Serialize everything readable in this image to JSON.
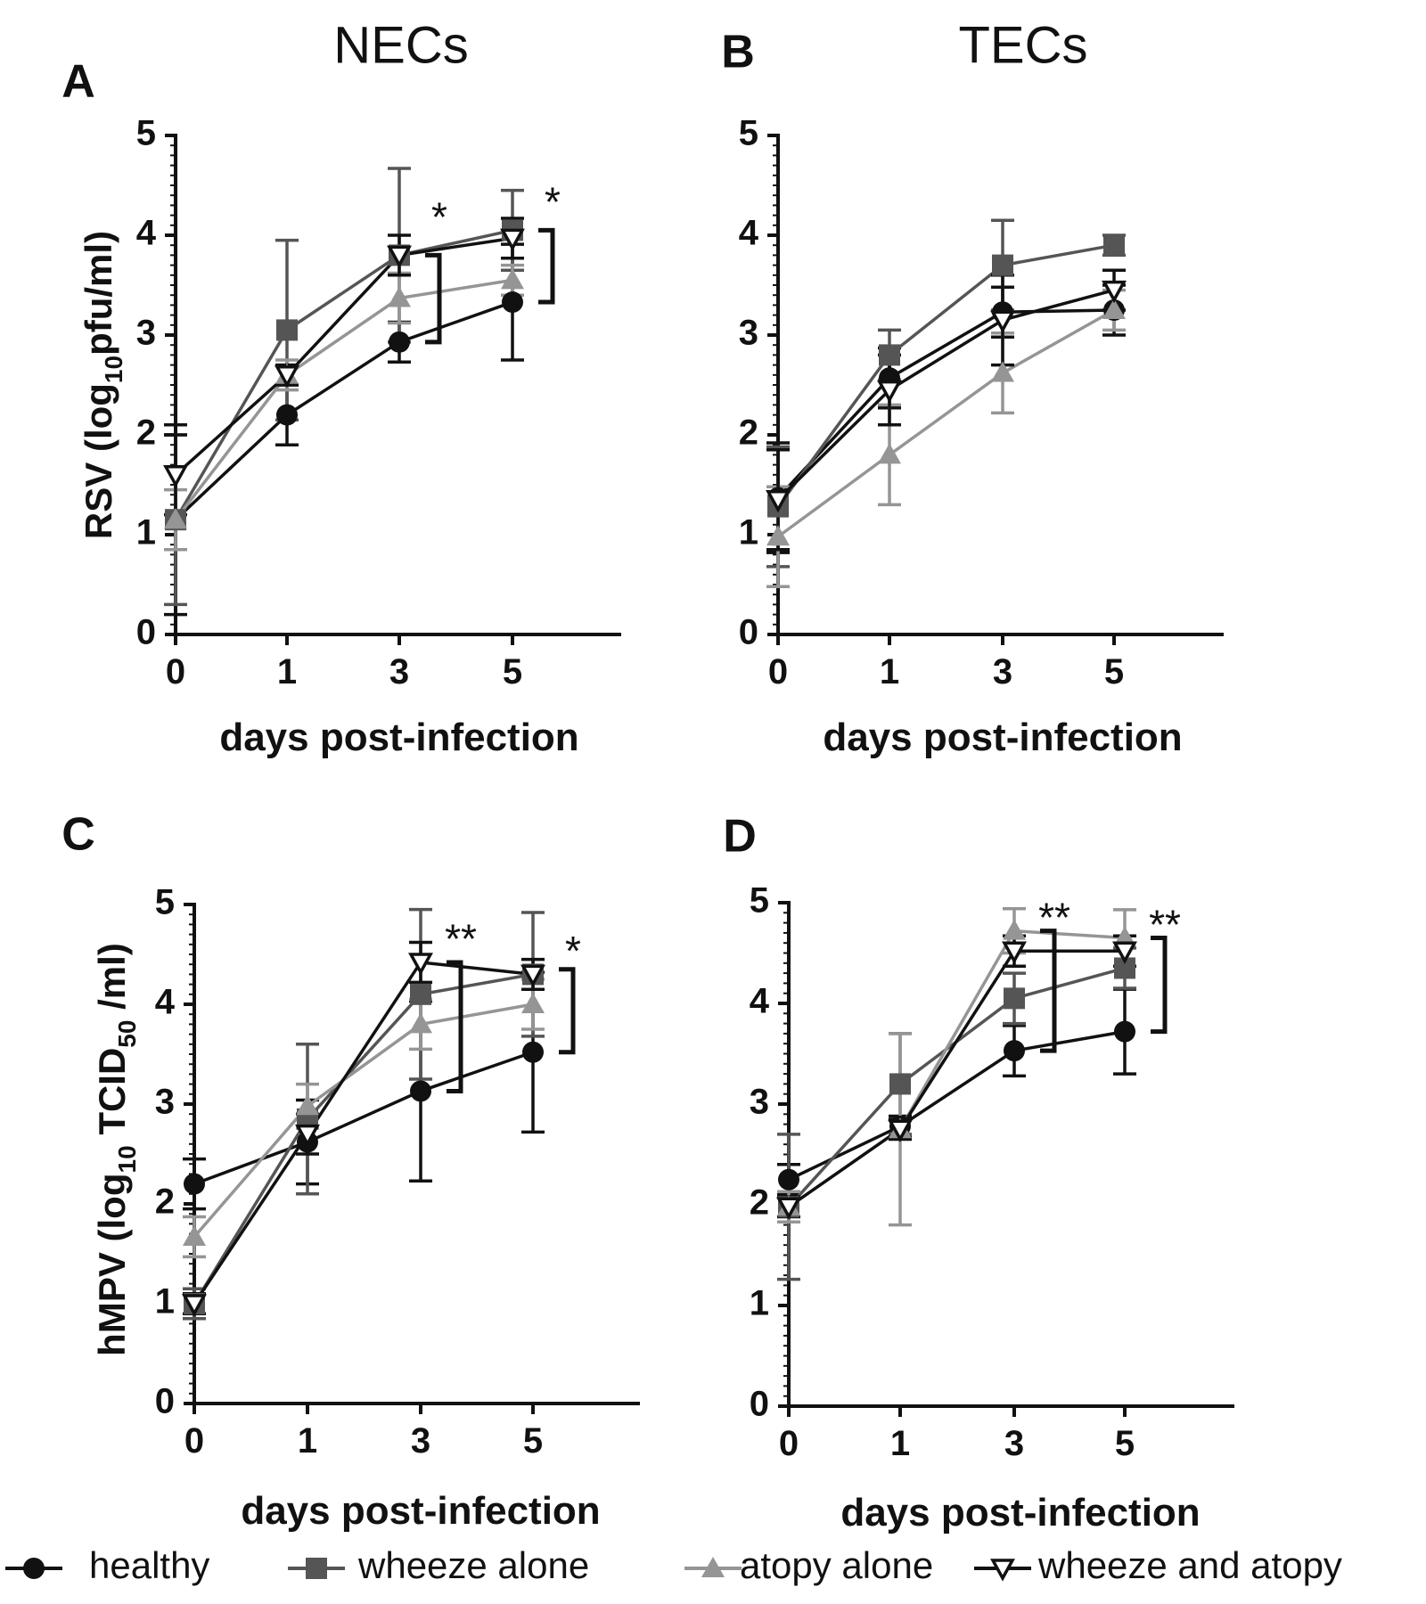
{
  "figure": {
    "legend": [
      {
        "name": "healthy",
        "marker": "circle",
        "color": "#111111"
      },
      {
        "name": "wheeze alone",
        "marker": "square",
        "color": "#555555"
      },
      {
        "name": "atopy alone",
        "marker": "triangle-up",
        "color": "#959595"
      },
      {
        "name": "wheeze and atopy",
        "marker": "triangle-down-open",
        "color": "#111111"
      }
    ]
  },
  "chart_data": [
    {
      "type": "line",
      "panel_letter": "A",
      "column_title": "NECs",
      "ylabel_pre": "RSV (log",
      "ylabel_sub": "10",
      "ylabel_post": "pfu/ml)",
      "xlabel": "days post-infection",
      "categories": [
        "0",
        "1",
        "3",
        "5"
      ],
      "ylim": [
        0,
        5
      ],
      "yticks": [
        "0",
        "1",
        "2",
        "3",
        "4",
        "5"
      ],
      "series": [
        {
          "name": "healthy",
          "values": [
            1.15,
            2.2,
            2.93,
            3.33
          ],
          "err": [
            0.95,
            0.3,
            0.2,
            0.58
          ]
        },
        {
          "name": "wheeze alone",
          "values": [
            1.15,
            3.05,
            3.8,
            4.05
          ],
          "err": [
            0.85,
            0.9,
            0.87,
            0.4
          ]
        },
        {
          "name": "atopy alone",
          "values": [
            1.15,
            2.6,
            3.37,
            3.55
          ],
          "err": [
            0.3,
            0.15,
            0.25,
            0.15
          ]
        },
        {
          "name": "wheeze and atopy",
          "values": [
            1.6,
            2.6,
            3.8,
            3.97
          ],
          "err": [
            0.4,
            0.1,
            0.2,
            0.2
          ]
        }
      ],
      "annotations": [
        {
          "text": "*",
          "x_cat": 3,
          "y": 4.15,
          "bracket": [
            2.93,
            3.8
          ]
        },
        {
          "text": "*",
          "x_cat": 5,
          "y": 4.3,
          "bracket": [
            3.33,
            4.05
          ]
        }
      ]
    },
    {
      "type": "line",
      "panel_letter": "B",
      "column_title": "TECs",
      "xlabel": "days post-infection",
      "categories": [
        "0",
        "1",
        "3",
        "5"
      ],
      "ylim": [
        0,
        5
      ],
      "yticks": [
        "0",
        "1",
        "2",
        "3",
        "4",
        "5"
      ],
      "series": [
        {
          "name": "healthy",
          "values": [
            1.37,
            2.57,
            3.23,
            3.25
          ],
          "err": [
            0.55,
            0.3,
            0.25,
            0.25
          ]
        },
        {
          "name": "wheeze alone",
          "values": [
            1.28,
            2.8,
            3.7,
            3.9
          ],
          "err": [
            0.6,
            0.25,
            0.45,
            0.1
          ]
        },
        {
          "name": "atopy alone",
          "values": [
            0.98,
            1.8,
            2.62,
            3.25
          ],
          "err": [
            0.5,
            0.5,
            0.4,
            0.2
          ]
        },
        {
          "name": "wheeze and atopy",
          "values": [
            1.35,
            2.45,
            3.15,
            3.45
          ],
          "err": [
            0.5,
            0.35,
            0.45,
            0.2
          ]
        }
      ]
    },
    {
      "type": "line",
      "panel_letter": "C",
      "ylabel_pre": "hMPV (log",
      "ylabel_sub": "10",
      "ylabel_mid": " TCID",
      "ylabel_sub2": "50",
      "ylabel_post": " /ml)",
      "xlabel": "days post-infection",
      "categories": [
        "0",
        "1",
        "3",
        "5"
      ],
      "ylim": [
        0,
        5
      ],
      "yticks": [
        "0",
        "1",
        "2",
        "3",
        "4",
        "5"
      ],
      "series": [
        {
          "name": "healthy",
          "values": [
            2.2,
            2.62,
            3.13,
            3.52
          ],
          "err": [
            0.25,
            0.42,
            0.9,
            0.8
          ]
        },
        {
          "name": "wheeze alone",
          "values": [
            1.0,
            2.85,
            4.1,
            4.3
          ],
          "err": [
            0.15,
            0.75,
            0.85,
            0.62
          ]
        },
        {
          "name": "atopy alone",
          "values": [
            1.67,
            2.98,
            3.8,
            4.0
          ],
          "err": [
            0.2,
            0.22,
            0.25,
            0.25
          ]
        },
        {
          "name": "wheeze and atopy",
          "values": [
            1.0,
            2.7,
            4.42,
            4.3
          ],
          "err": [
            0.1,
            0.2,
            0.2,
            0.15
          ]
        }
      ],
      "annotations": [
        {
          "text": "**",
          "x_cat": 3,
          "y": 4.62,
          "bracket": [
            3.13,
            4.42
          ]
        },
        {
          "text": "*",
          "x_cat": 5,
          "y": 4.5,
          "bracket": [
            3.52,
            4.35
          ]
        }
      ]
    },
    {
      "type": "line",
      "panel_letter": "D",
      "xlabel": "days post-infection",
      "categories": [
        "0",
        "1",
        "3",
        "5"
      ],
      "ylim": [
        0,
        5
      ],
      "yticks": [
        "0",
        "1",
        "2",
        "3",
        "4",
        "5"
      ],
      "series": [
        {
          "name": "healthy",
          "values": [
            2.25,
            2.78,
            3.53,
            3.72
          ],
          "err": [
            0.15,
            0.1,
            0.25,
            0.42
          ]
        },
        {
          "name": "wheeze alone",
          "values": [
            1.98,
            3.2,
            4.05,
            4.35
          ],
          "err": [
            0.72,
            0.5,
            0.25,
            0.2
          ]
        },
        {
          "name": "atopy alone",
          "values": [
            1.98,
            2.75,
            4.72,
            4.65
          ],
          "err": [
            0.15,
            0.95,
            0.22,
            0.28
          ]
        },
        {
          "name": "wheeze and atopy",
          "values": [
            1.98,
            2.75,
            4.52,
            4.52
          ],
          "err": [
            0.1,
            0.1,
            0.15,
            0.15
          ]
        }
      ],
      "annotations": [
        {
          "text": "**",
          "x_cat": 3,
          "y": 4.82,
          "bracket": [
            3.53,
            4.72
          ]
        },
        {
          "text": "**",
          "x_cat": 5,
          "y": 4.75,
          "bracket": [
            3.72,
            4.65
          ]
        }
      ]
    }
  ]
}
